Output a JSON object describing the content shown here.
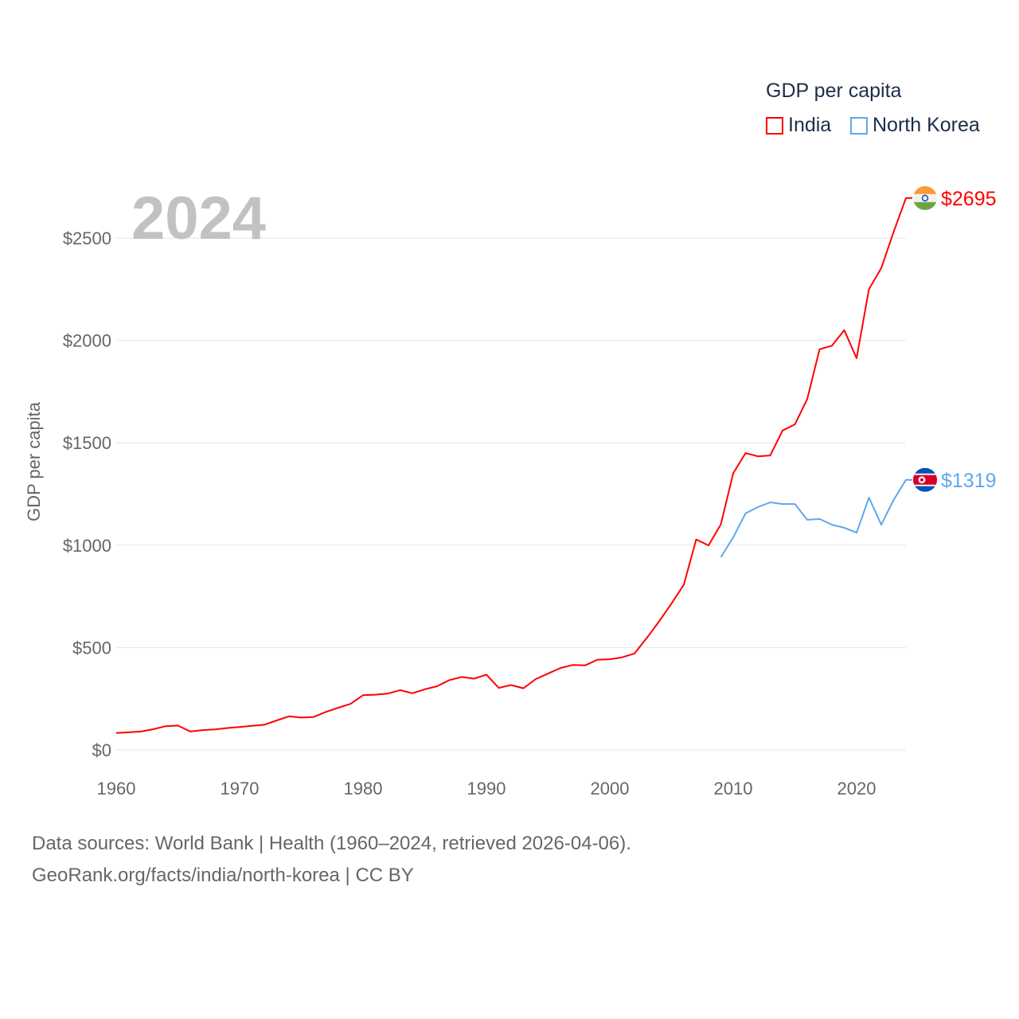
{
  "chart_data": {
    "type": "line",
    "title": "GDP per capita",
    "year_label": "2024",
    "xlabel": "",
    "ylabel": "GDP per capita",
    "xlim": [
      1960,
      2024
    ],
    "ylim": [
      0,
      2700
    ],
    "x_ticks": [
      1960,
      1970,
      1980,
      1990,
      2000,
      2010,
      2020
    ],
    "x_tick_labels": [
      "1960",
      "1970",
      "1980",
      "1990",
      "2000",
      "2010",
      "2020"
    ],
    "y_ticks": [
      0,
      500,
      1000,
      1500,
      2000,
      2500
    ],
    "y_tick_labels": [
      "$0",
      "$500",
      "$1000",
      "$1500",
      "$2000",
      "$2500"
    ],
    "grid": true,
    "legend_position": "top-right",
    "series": [
      {
        "name": "India",
        "color": "#ff0000",
        "end_label": "$2695",
        "flag": "india-flag",
        "x_start": 1960,
        "values": [
          83,
          86,
          90,
          101,
          116,
          119,
          90,
          97,
          100,
          107,
          112,
          118,
          123,
          144,
          164,
          158,
          161,
          186,
          206,
          225,
          267,
          270,
          275,
          292,
          277,
          296,
          311,
          341,
          356,
          348,
          368,
          303,
          317,
          301,
          346,
          373,
          400,
          415,
          413,
          441,
          443,
          452,
          471,
          547,
          628,
          715,
          807,
          1028,
          999,
          1102,
          1351,
          1450,
          1434,
          1438,
          1560,
          1590,
          1714,
          1957,
          1974,
          2050,
          1913,
          2250,
          2353,
          2530,
          2695
        ]
      },
      {
        "name": "North Korea",
        "color": "#5ea8ee",
        "end_label": "$1319",
        "flag": "north-korea-flag",
        "x_start": 2009,
        "values": [
          941,
          1038,
          1155,
          1186,
          1209,
          1201,
          1201,
          1124,
          1128,
          1100,
          1085,
          1061,
          1232,
          1100,
          1221,
          1319
        ]
      }
    ]
  },
  "footer": {
    "line1": "Data sources: World Bank | Health (1960–2024, retrieved 2026-04-06).",
    "line2": "GeoRank.org/facts/india/north-korea | CC BY"
  }
}
